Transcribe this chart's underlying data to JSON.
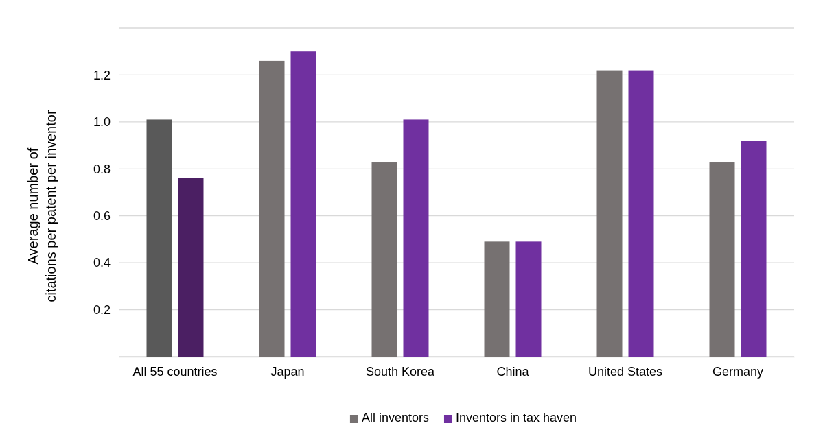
{
  "chart_data": {
    "type": "bar",
    "ylabel": "Average number of\ncitations per patent per inventor",
    "categories": [
      "All 55 countries",
      "Japan",
      "South Korea",
      "China",
      "United States",
      "Germany"
    ],
    "series": [
      {
        "name": "All inventors",
        "color": "#767171",
        "colors": [
          "#595959",
          "#767171",
          "#767171",
          "#767171",
          "#767171",
          "#767171"
        ],
        "values": [
          1.01,
          1.26,
          0.83,
          0.49,
          1.22,
          0.83
        ]
      },
      {
        "name": "Inventors in tax haven",
        "color": "#7030a0",
        "colors": [
          "#4b1f63",
          "#7030a0",
          "#7030a0",
          "#7030a0",
          "#7030a0",
          "#7030a0"
        ],
        "values": [
          0.76,
          1.3,
          1.01,
          0.49,
          1.22,
          0.92
        ]
      }
    ],
    "ylim": [
      0,
      1.4
    ],
    "yticks": [
      {
        "value": 0,
        "label": null
      },
      0.2,
      0.4,
      0.6,
      0.8,
      {
        "value": 1,
        "label": "1.0"
      },
      1.2,
      {
        "value": 1.4,
        "label": null
      }
    ],
    "grid": "y",
    "legend": "bottom"
  }
}
